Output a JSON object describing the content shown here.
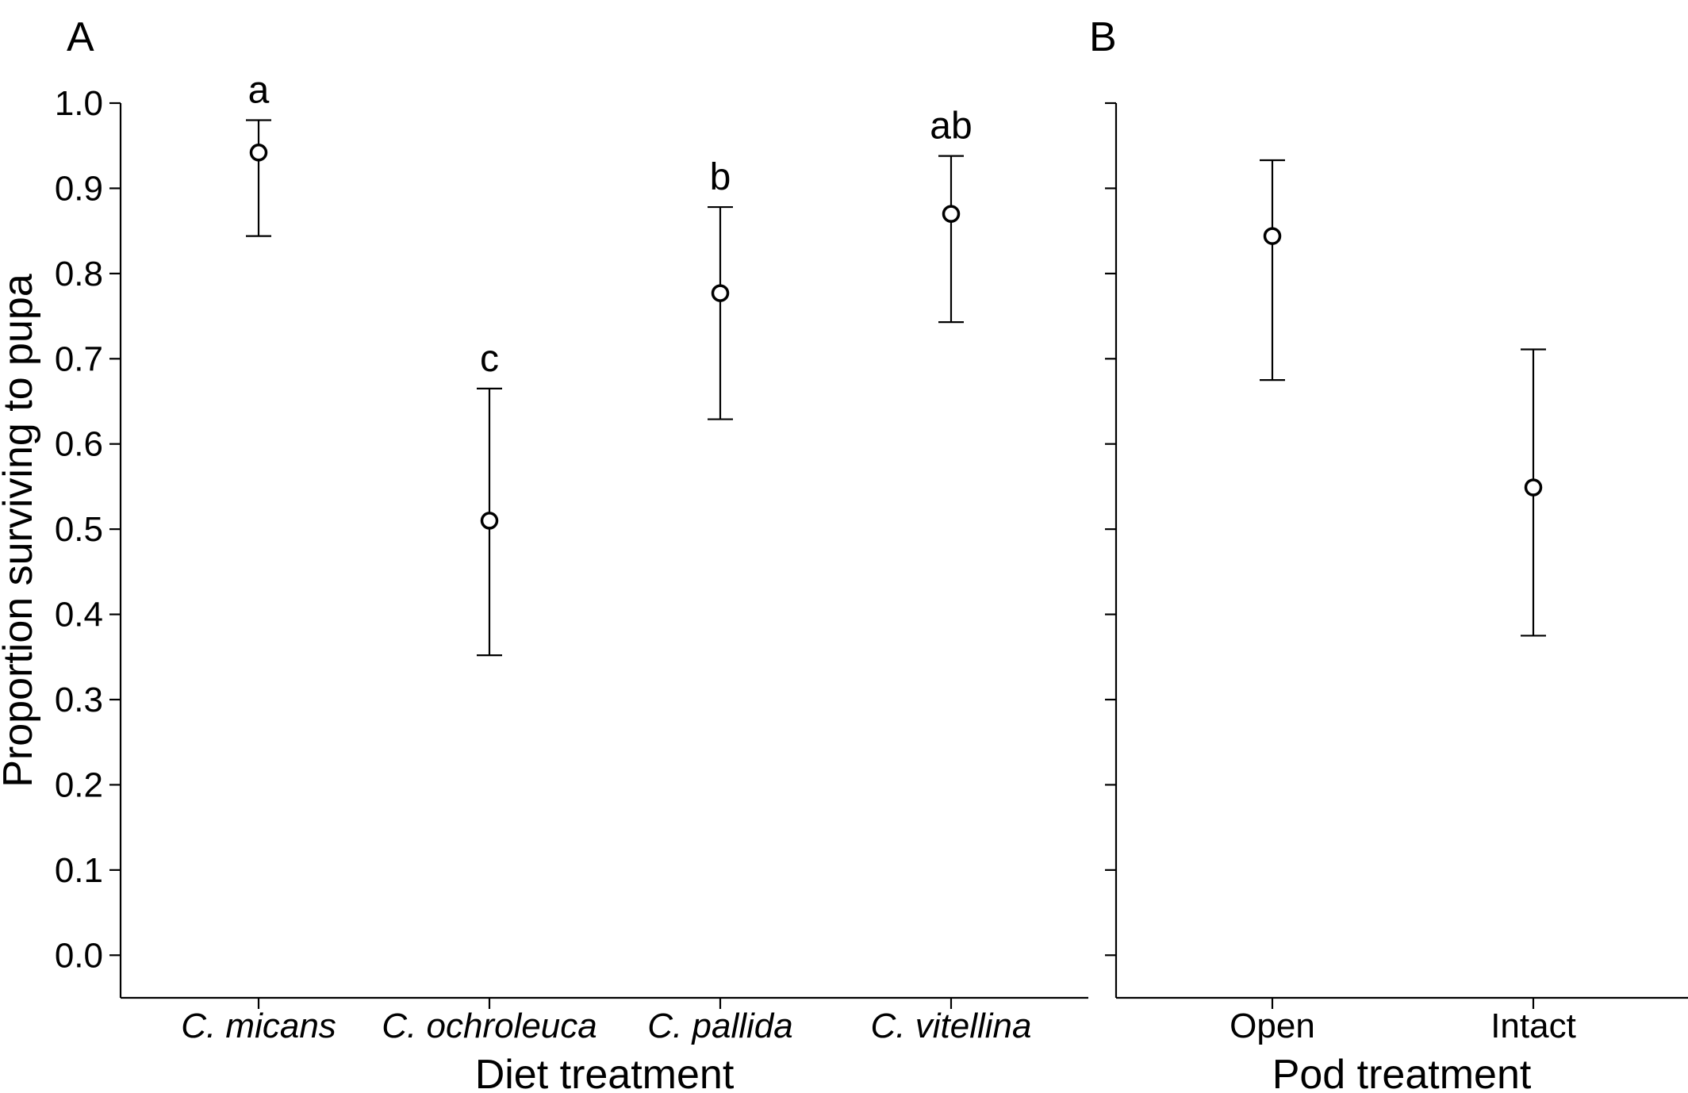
{
  "chart_data": [
    {
      "type": "scatter",
      "panel_label": "A",
      "title": "",
      "xlabel": "Diet treatment",
      "ylabel": "Proportion surviving to pupa",
      "ylim": [
        -0.05,
        1.0
      ],
      "yticks": [
        "0.0",
        "0.1",
        "0.2",
        "0.3",
        "0.4",
        "0.5",
        "0.6",
        "0.7",
        "0.8",
        "0.9",
        "1.0"
      ],
      "ytick_values": [
        0.0,
        0.1,
        0.2,
        0.3,
        0.4,
        0.5,
        0.6,
        0.7,
        0.8,
        0.9,
        1.0
      ],
      "categories": [
        "C. micans",
        "C. ochroleuca",
        "C. pallida",
        "C. vitellina"
      ],
      "categories_italic": true,
      "values": [
        0.942,
        0.51,
        0.777,
        0.87
      ],
      "lower": [
        0.844,
        0.352,
        0.629,
        0.743
      ],
      "upper": [
        0.98,
        0.665,
        0.878,
        0.938
      ],
      "significance_letters": [
        "a",
        "c",
        "b",
        "ab"
      ],
      "grid": false
    },
    {
      "type": "scatter",
      "panel_label": "B",
      "title": "",
      "xlabel": "Pod treatment",
      "ylabel": "",
      "ylim": [
        -0.05,
        1.0
      ],
      "ytick_values": [
        0.0,
        0.1,
        0.2,
        0.3,
        0.4,
        0.5,
        0.6,
        0.7,
        0.8,
        0.9,
        1.0
      ],
      "categories": [
        "Open",
        "Intact"
      ],
      "categories_italic": false,
      "values": [
        0.844,
        0.549
      ],
      "lower": [
        0.675,
        0.375
      ],
      "upper": [
        0.933,
        0.711
      ],
      "grid": false
    }
  ]
}
